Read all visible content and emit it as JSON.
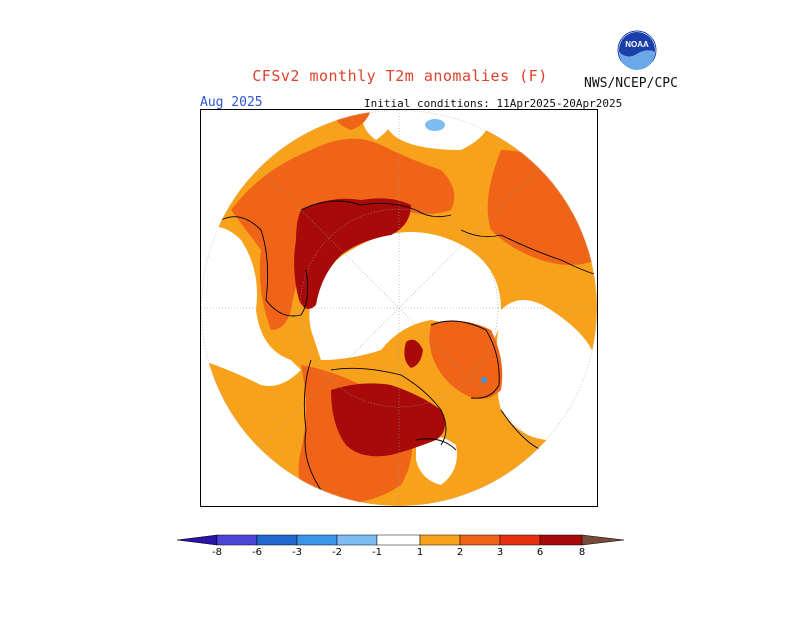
{
  "header": {
    "title": "CFSv2 monthly T2m anomalies (F)",
    "organization": "NWS/NCEP/CPC",
    "logo_text": "NOAA",
    "month": "Aug 2025",
    "initial_conditions": "Initial conditions: 11Apr2025-20Apr2025"
  },
  "colorbar": {
    "colors": [
      "#2a14a8",
      "#4a46d8",
      "#2068d0",
      "#3a94e8",
      "#7ebcf4",
      "#ffffff",
      "#f8a21c",
      "#f06418",
      "#e63010",
      "#a80a0a",
      "#c89a8a",
      "#7a4a3a"
    ],
    "tick_labels": [
      "-8",
      "-6",
      "-3",
      "-2",
      "-1",
      "1",
      "2",
      "3",
      "6",
      "8"
    ]
  },
  "map": {
    "projection": "north polar stereographic",
    "colors": {
      "light_warm": "#f8a21c",
      "warm": "#f06418",
      "hot": "#e63010",
      "very_hot": "#a80a0a",
      "cool": "#7ebcf4"
    }
  }
}
